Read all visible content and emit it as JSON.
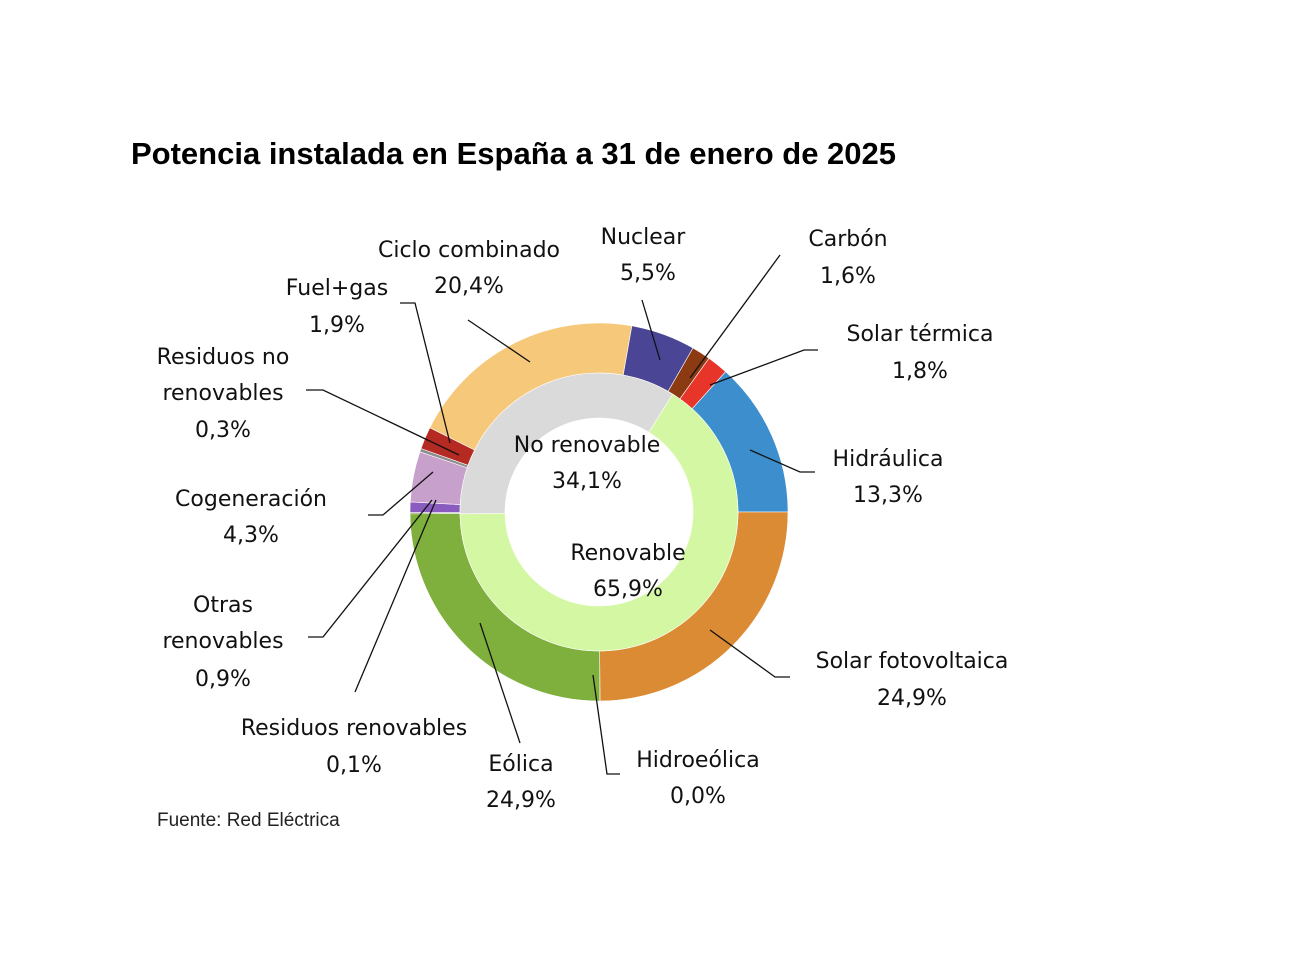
{
  "chart_data": {
    "type": "pie",
    "title": "Potencia instalada en España a 31 de enero de 2025",
    "source": "Fuente: Red Eléctrica",
    "outer_ring": [
      {
        "name": "Nuclear",
        "value": 5.5,
        "label": "5,5%",
        "color": "#4a4595"
      },
      {
        "name": "Carbón",
        "value": 1.6,
        "label": "1,6%",
        "color": "#8b3a12"
      },
      {
        "name": "Solar térmica",
        "value": 1.8,
        "label": "1,8%",
        "color": "#e8352a"
      },
      {
        "name": "Hidráulica",
        "value": 13.3,
        "label": "13,3%",
        "color": "#3d8ecd"
      },
      {
        "name": "Solar fotovoltaica",
        "value": 24.9,
        "label": "24,9%",
        "color": "#dc8b35"
      },
      {
        "name": "Hidroeólica",
        "value": 0.0,
        "label": "0,0%",
        "color": "#6e9a3a"
      },
      {
        "name": "Eólica",
        "value": 24.9,
        "label": "24,9%",
        "color": "#7faf3c"
      },
      {
        "name": "Residuos renovables",
        "value": 0.1,
        "label": "0,1%",
        "color": "#5a7d2a"
      },
      {
        "name": "Otras renovables",
        "value": 0.9,
        "label": "0,9%",
        "color": "#8a5cc0"
      },
      {
        "name": "Cogeneración",
        "value": 4.3,
        "label": "4,3%",
        "color": "#c8a0cc"
      },
      {
        "name": "Residuos no renovables",
        "value": 0.3,
        "label": "0,3%",
        "color": "#8e8e8e"
      },
      {
        "name": "Fuel+gas",
        "value": 1.9,
        "label": "1,9%",
        "color": "#b52a23"
      },
      {
        "name": "Ciclo combinado",
        "value": 20.4,
        "label": "20,4%",
        "color": "#f6c87a"
      }
    ],
    "inner_ring": [
      {
        "name": "Renovable",
        "value": 65.9,
        "label": "65,9%",
        "color": "#d4f7a4"
      },
      {
        "name": "No renovable",
        "value": 34.1,
        "label": "34,1%",
        "color": "#dadada"
      }
    ]
  }
}
